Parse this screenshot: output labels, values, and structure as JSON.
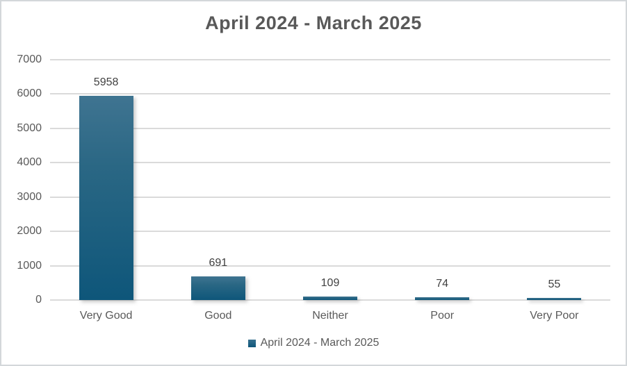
{
  "chart_data": {
    "type": "bar",
    "title": "April 2024 - March 2025",
    "categories": [
      "Very Good",
      "Good",
      "Neither",
      "Poor",
      "Very Poor"
    ],
    "values": [
      5958,
      691,
      109,
      74,
      55
    ],
    "data_labels": [
      5958,
      691,
      109,
      74,
      55
    ],
    "ylim": [
      0,
      7000
    ],
    "ytick_interval": 1000,
    "ytick_labels": [
      "7000",
      "6000",
      "5000",
      "4000",
      "3000",
      "2000",
      "1000",
      "0"
    ],
    "grid": "horizontal",
    "legend": {
      "position": "bottom",
      "label": "April 2024 - March 2025"
    },
    "colors": {
      "bar_gradient_top": "#3f7491",
      "bar_gradient_bottom": "#0e567a",
      "gridline": "#dadada",
      "title_text": "#595959",
      "axis_text": "#595959",
      "data_label_text": "#404040"
    }
  }
}
